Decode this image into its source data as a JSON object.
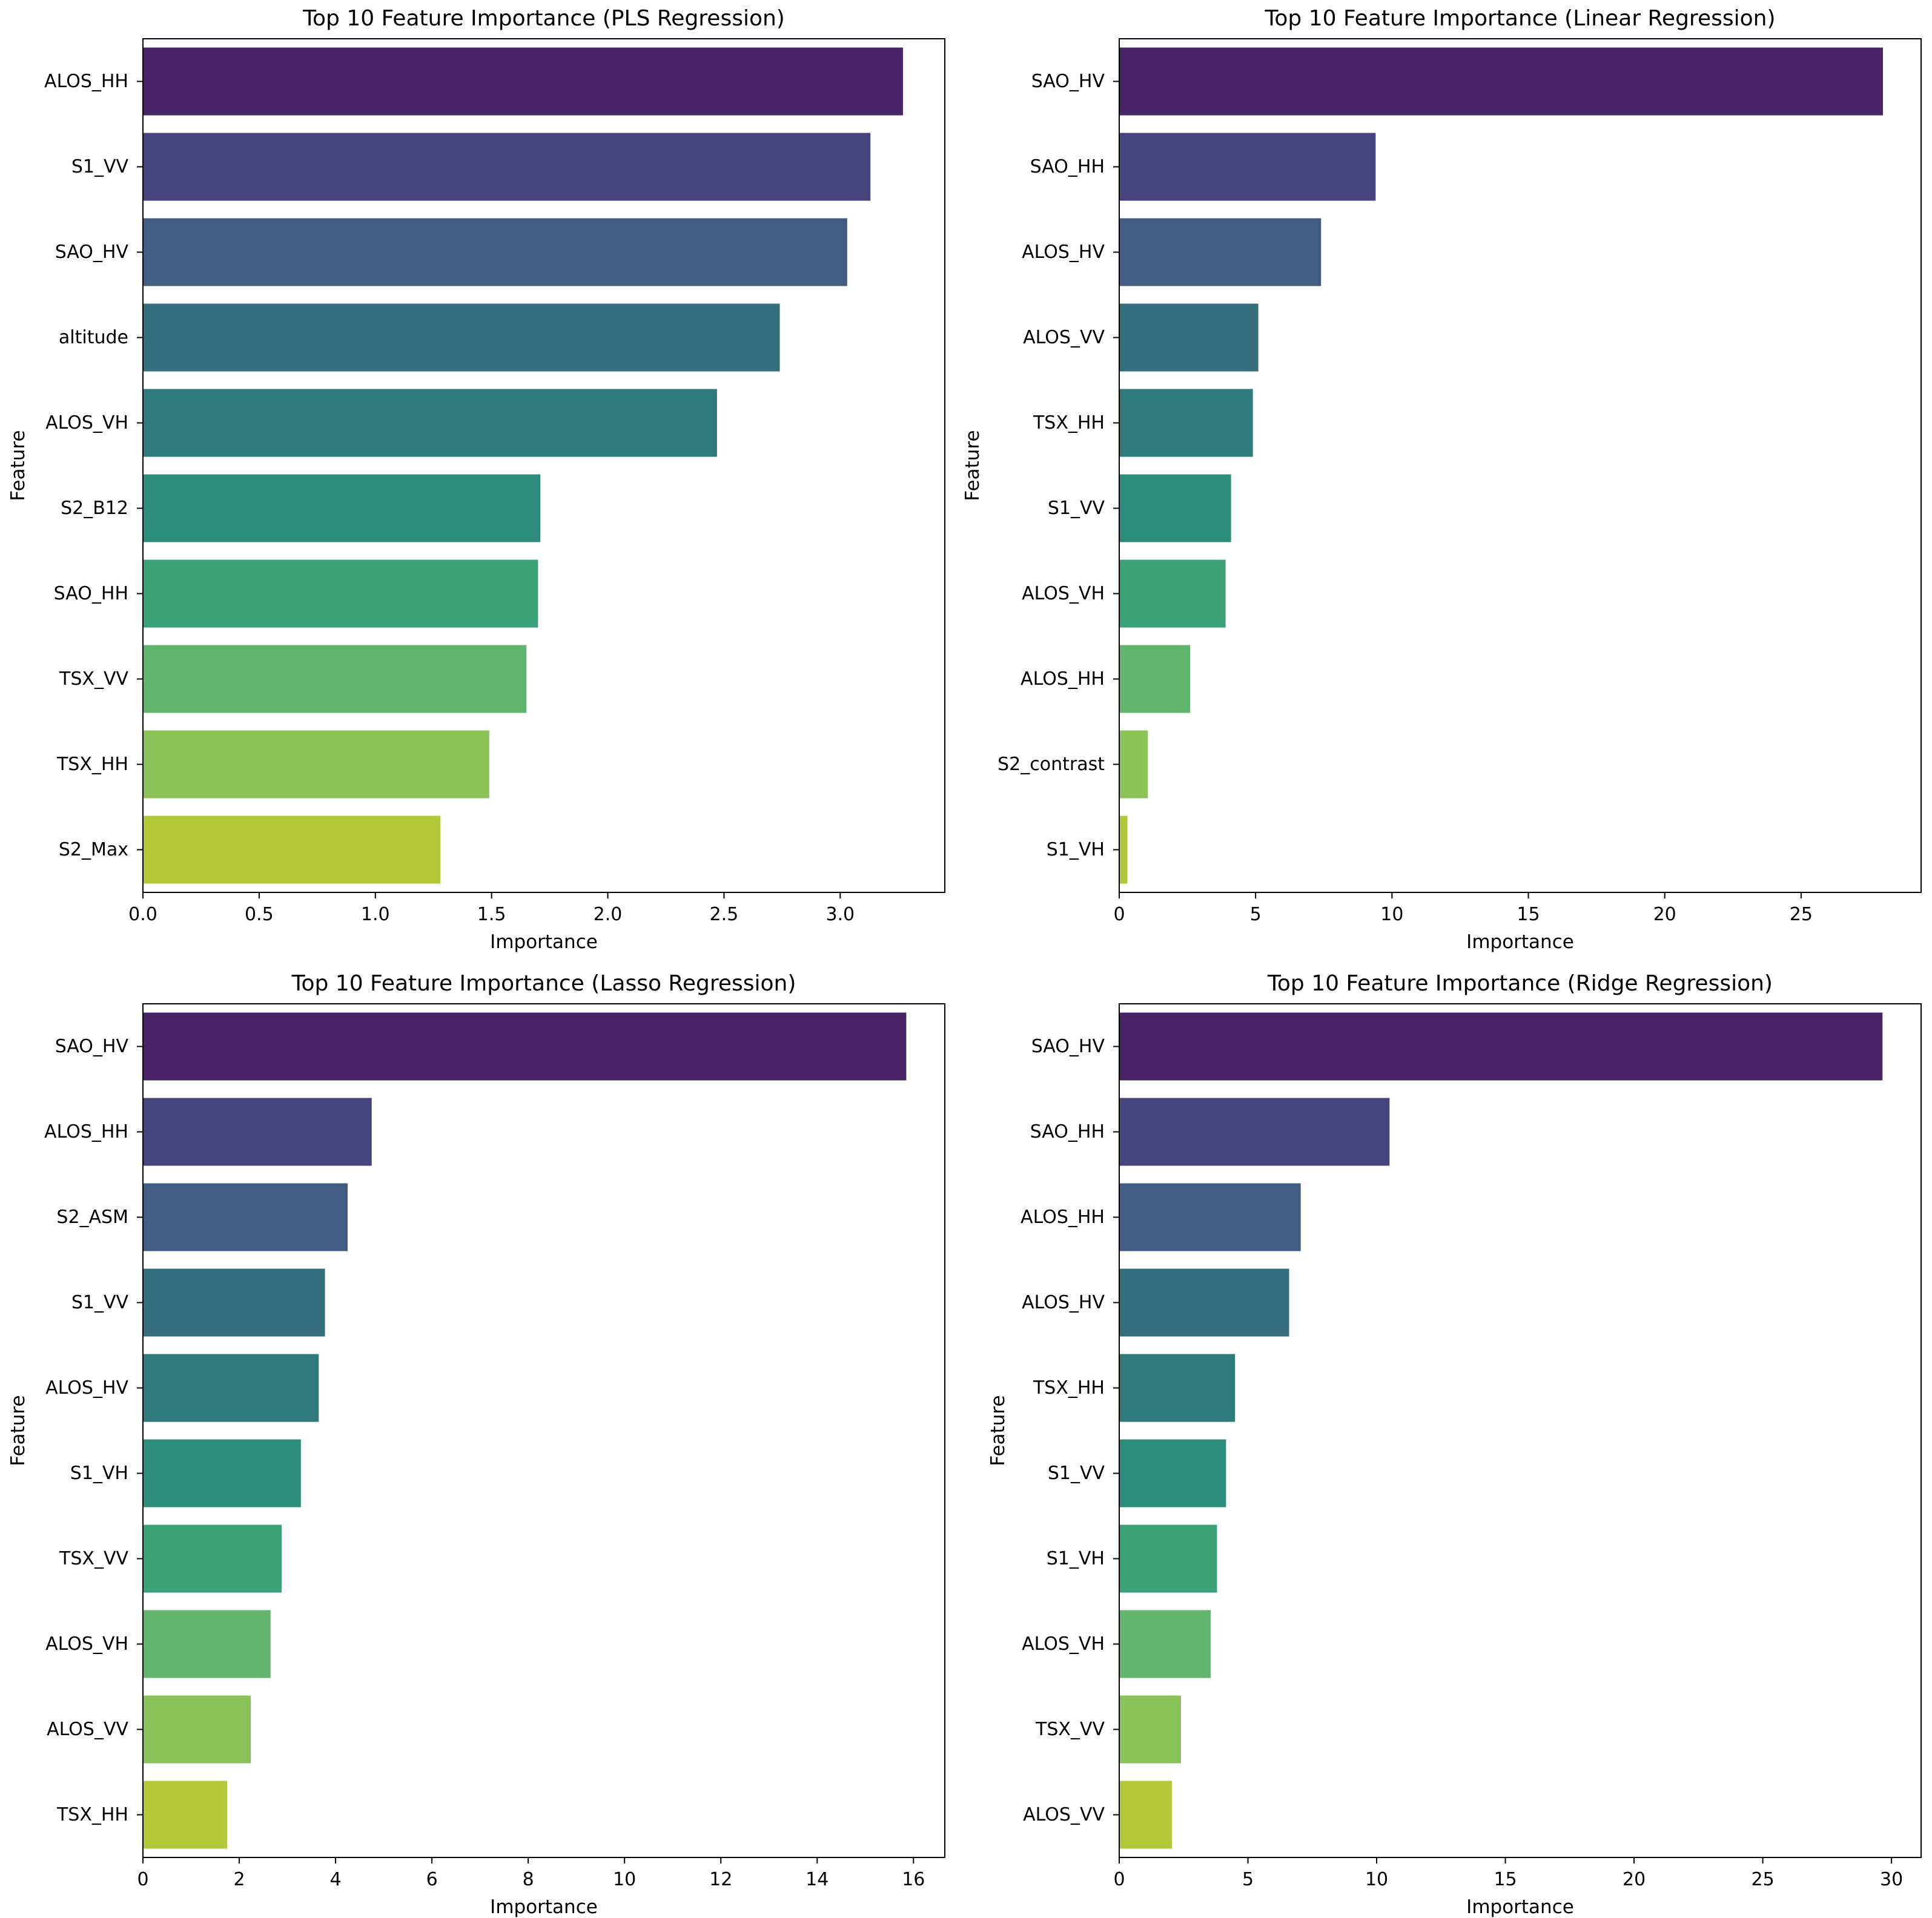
{
  "palette": [
    "#482466",
    "#46447c",
    "#415b82",
    "#356f7e",
    "#2f7b7c",
    "#2c8c7b",
    "#3aa178",
    "#61b56d",
    "#8ac35a",
    "#b3c73a"
  ],
  "chart_data": [
    {
      "type": "bar",
      "orientation": "horizontal",
      "title": "Top 10 Feature Importance (PLS Regression)",
      "xlabel": "Importance",
      "ylabel": "Feature",
      "categories": [
        "ALOS_HH",
        "S1_VV",
        "SAO_HV",
        "altitude",
        "ALOS_VH",
        "S2_B12",
        "SAO_HH",
        "TSX_VV",
        "TSX_HH",
        "S2_Max"
      ],
      "values": [
        3.27,
        3.13,
        3.03,
        2.74,
        2.47,
        1.71,
        1.7,
        1.65,
        1.49,
        1.28
      ],
      "xlim": [
        0,
        3.45
      ],
      "xticks": [
        0.0,
        0.5,
        1.0,
        1.5,
        2.0,
        2.5,
        3.0
      ],
      "xtick_labels": [
        "0.0",
        "0.5",
        "1.0",
        "1.5",
        "2.0",
        "2.5",
        "3.0"
      ],
      "grid": false,
      "legend": "none"
    },
    {
      "type": "bar",
      "orientation": "horizontal",
      "title": "Top 10 Feature Importance (Linear Regression)",
      "xlabel": "Importance",
      "ylabel": "Feature",
      "categories": [
        "SAO_HV",
        "SAO_HH",
        "ALOS_HV",
        "ALOS_VV",
        "TSX_HH",
        "S1_VV",
        "ALOS_VH",
        "ALOS_HH",
        "S2_contrast",
        "S1_VH"
      ],
      "values": [
        28.0,
        9.4,
        7.4,
        5.1,
        4.9,
        4.1,
        3.9,
        2.6,
        1.05,
        0.3
      ],
      "xlim": [
        0,
        29.4
      ],
      "xticks": [
        0,
        5,
        10,
        15,
        20,
        25
      ],
      "xtick_labels": [
        "0",
        "5",
        "10",
        "15",
        "20",
        "25"
      ],
      "grid": false,
      "legend": "none"
    },
    {
      "type": "bar",
      "orientation": "horizontal",
      "title": "Top 10 Feature Importance (Lasso Regression)",
      "xlabel": "Importance",
      "ylabel": "Feature",
      "categories": [
        "SAO_HV",
        "ALOS_HH",
        "S2_ASM",
        "S1_VV",
        "ALOS_HV",
        "S1_VH",
        "TSX_VV",
        "ALOS_VH",
        "ALOS_VV",
        "TSX_HH"
      ],
      "values": [
        15.85,
        4.75,
        4.25,
        3.78,
        3.65,
        3.28,
        2.88,
        2.65,
        2.24,
        1.75
      ],
      "xlim": [
        0,
        16.65
      ],
      "xticks": [
        0,
        2,
        4,
        6,
        8,
        10,
        12,
        14,
        16
      ],
      "xtick_labels": [
        "0",
        "2",
        "4",
        "6",
        "8",
        "10",
        "12",
        "14",
        "16"
      ],
      "grid": false,
      "legend": "none"
    },
    {
      "type": "bar",
      "orientation": "horizontal",
      "title": "Top 10 Feature Importance (Ridge Regression)",
      "xlabel": "Importance",
      "ylabel": "Feature",
      "categories": [
        "SAO_HV",
        "SAO_HH",
        "ALOS_HH",
        "ALOS_HV",
        "TSX_HH",
        "S1_VV",
        "S1_VH",
        "ALOS_VH",
        "TSX_VV",
        "ALOS_VV"
      ],
      "values": [
        29.65,
        10.5,
        7.05,
        6.6,
        4.5,
        4.15,
        3.8,
        3.55,
        2.4,
        2.05
      ],
      "xlim": [
        0,
        31.15
      ],
      "xticks": [
        0,
        5,
        10,
        15,
        20,
        25,
        30
      ],
      "xtick_labels": [
        "0",
        "5",
        "10",
        "15",
        "20",
        "25",
        "30"
      ],
      "grid": false,
      "legend": "none"
    }
  ]
}
